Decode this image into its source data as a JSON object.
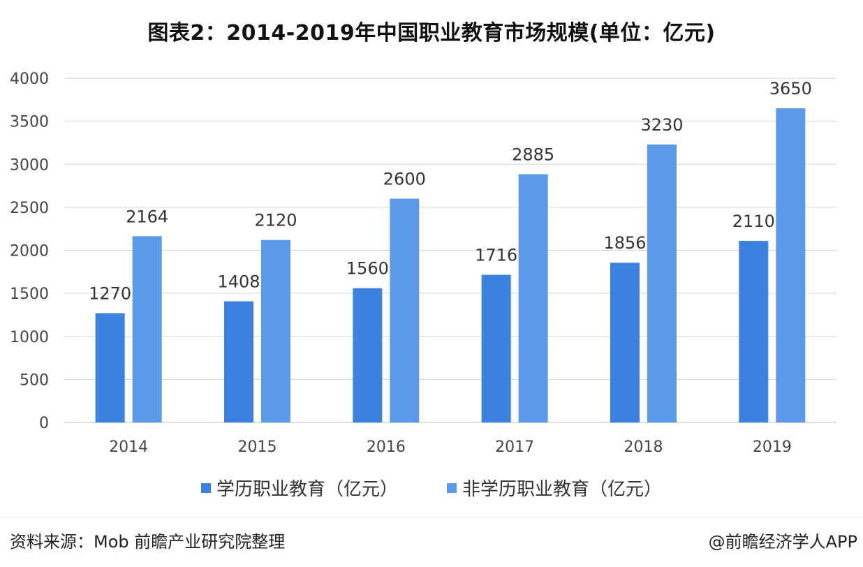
{
  "title": "图表2：2014-2019年中国职业教育市场规模(单位：亿元)",
  "source": "资料来源：Mob 前瞻产业研究院整理",
  "credit": "@前瞻经济学人APP",
  "colors": {
    "series1": "#3b82e0",
    "series2": "#5b9ae8",
    "grid": "#d6d6d6",
    "axis": "#bdbdbd"
  },
  "chart_data": {
    "type": "bar",
    "categories": [
      "2014",
      "2015",
      "2016",
      "2017",
      "2018",
      "2019"
    ],
    "series": [
      {
        "name": "学历职业教育（亿元）",
        "values": [
          1270,
          1408,
          1560,
          1716,
          1856,
          2110
        ]
      },
      {
        "name": "非学历职业教育（亿元）",
        "values": [
          2164,
          2120,
          2600,
          2885,
          3230,
          3650
        ]
      }
    ],
    "yticks": [
      "0",
      "500",
      "1000",
      "1500",
      "2000",
      "2500",
      "3000",
      "3500",
      "4000"
    ],
    "ylim": [
      0,
      4000
    ],
    "grid": true,
    "legend_position": "bottom"
  }
}
